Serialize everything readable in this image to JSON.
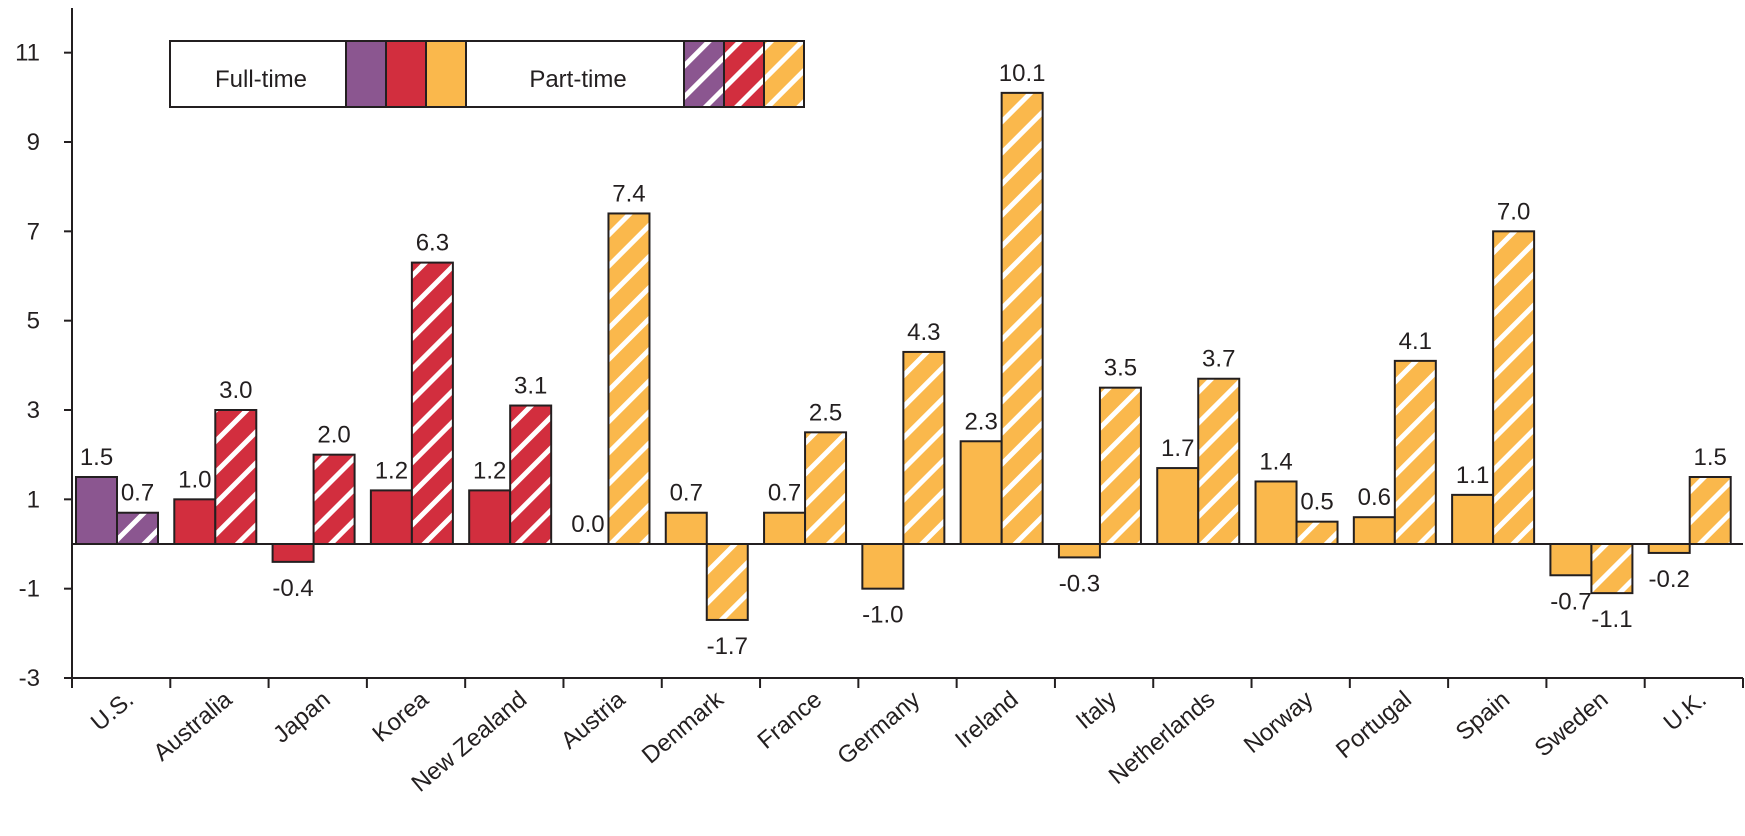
{
  "chart_data": {
    "type": "bar",
    "title": "",
    "xlabel": "",
    "ylabel": "",
    "ylim": [
      -3,
      12
    ],
    "yticks": [
      11,
      9,
      7,
      5,
      3,
      1,
      -1,
      -3
    ],
    "grid": false,
    "legend": {
      "placement": "top-left",
      "entries": [
        "Full-time",
        "Part-time"
      ],
      "pattern_full_time": "solid",
      "pattern_part_time": "diagonal-white-stripes"
    },
    "group_colors": {
      "us": "#8b5690",
      "nonEurope": "#d22e3e",
      "europe": "#fab84c"
    },
    "categories": [
      "U.S.",
      "Australia",
      "Japan",
      "Korea",
      "New Zealand",
      "Austria",
      "Denmark",
      "France",
      "Germany",
      "Ireland",
      "Italy",
      "Netherlands",
      "Norway",
      "Portugal",
      "Spain",
      "Sweden",
      "U.K."
    ],
    "category_group": [
      "us",
      "nonEurope",
      "nonEurope",
      "nonEurope",
      "nonEurope",
      "europe",
      "europe",
      "europe",
      "europe",
      "europe",
      "europe",
      "europe",
      "europe",
      "europe",
      "europe",
      "europe",
      "europe"
    ],
    "series": [
      {
        "name": "Full-time",
        "values": [
          1.5,
          1.0,
          -0.4,
          1.2,
          1.2,
          0.0,
          0.7,
          0.7,
          -1.0,
          2.3,
          -0.3,
          1.7,
          1.4,
          0.6,
          1.1,
          -0.7,
          -0.2
        ],
        "labels": [
          "1.5",
          "1.0",
          "-0.4",
          "1.2",
          "1.2",
          "0.0",
          "0.7",
          "0.7",
          "-1.0",
          "2.3",
          "-0.3",
          "1.7",
          "1.4",
          "0.6",
          "1.1",
          "-0.7",
          "-0.2"
        ]
      },
      {
        "name": "Part-time",
        "values": [
          0.7,
          3.0,
          2.0,
          6.3,
          3.1,
          7.4,
          -1.7,
          2.5,
          4.3,
          10.1,
          3.5,
          3.7,
          0.5,
          4.1,
          7.0,
          -1.1,
          1.5
        ],
        "labels": [
          "0.7",
          "3.0",
          "2.0",
          "6.3",
          "3.1",
          "7.4",
          "-1.7",
          "2.5",
          "4.3",
          "10.1",
          "3.5",
          "3.7",
          "0.5",
          "4.1",
          "7.0",
          "-1.1",
          "1.5"
        ]
      }
    ]
  }
}
